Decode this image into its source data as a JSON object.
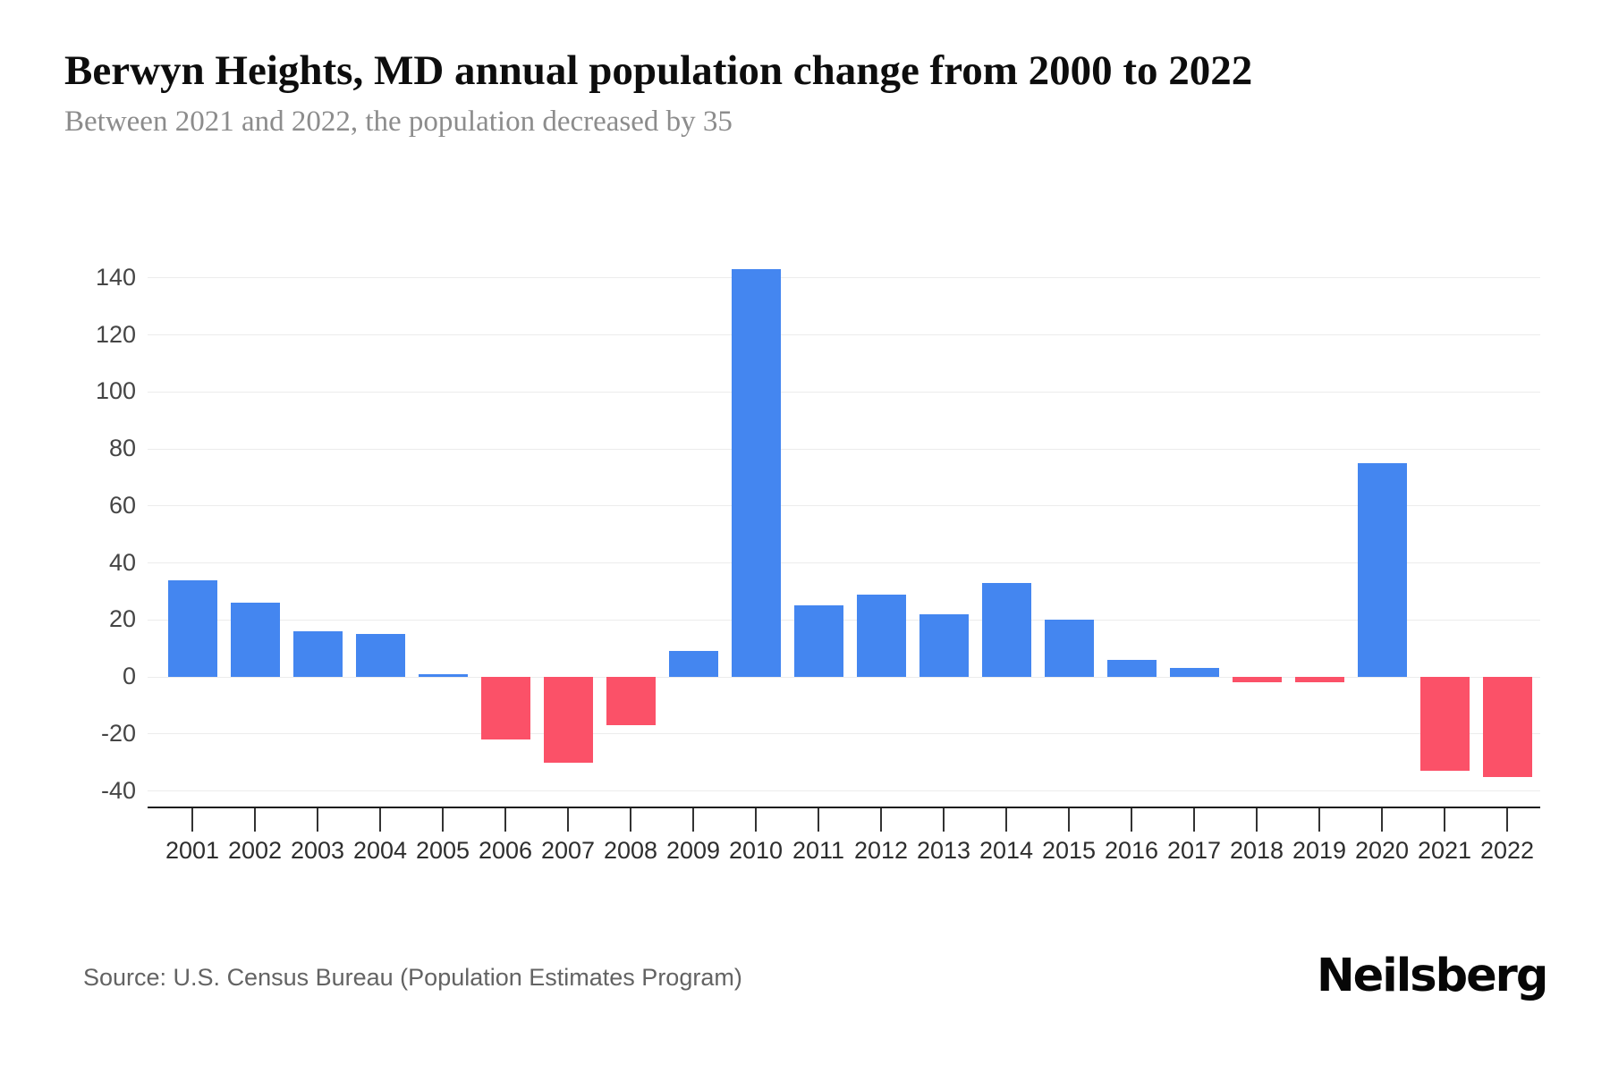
{
  "header": {
    "title": "Berwyn Heights, MD annual population change from 2000 to 2022",
    "subtitle": "Between 2021 and 2022, the population decreased by 35"
  },
  "footer": {
    "source": "Source: U.S. Census Bureau (Population Estimates Program)",
    "brand": "Neilsberg"
  },
  "colors": {
    "positive_bar": "#4486F0",
    "negative_bar": "#FB5168",
    "gridline": "#ECECEC",
    "axis_line": "#1C1C1C"
  },
  "chart_data": {
    "type": "bar",
    "title": "Berwyn Heights, MD annual population change from 2000 to 2022",
    "subtitle": "Between 2021 and 2022, the population decreased by 35",
    "xlabel": "",
    "ylabel": "",
    "categories": [
      "2001",
      "2002",
      "2003",
      "2004",
      "2005",
      "2006",
      "2007",
      "2008",
      "2009",
      "2010",
      "2011",
      "2012",
      "2013",
      "2014",
      "2015",
      "2016",
      "2017",
      "2018",
      "2019",
      "2020",
      "2021",
      "2022"
    ],
    "values": [
      34,
      26,
      16,
      15,
      1,
      -22,
      -30,
      -17,
      9,
      143,
      25,
      29,
      22,
      33,
      20,
      6,
      3,
      -2,
      -2,
      75,
      -33,
      -35
    ],
    "ylim": [
      -40,
      140
    ],
    "yticks": [
      140,
      120,
      100,
      80,
      60,
      40,
      20,
      0,
      -20,
      -40
    ],
    "grid": true,
    "legend": false,
    "positive_color": "#4486F0",
    "negative_color": "#FB5168"
  }
}
